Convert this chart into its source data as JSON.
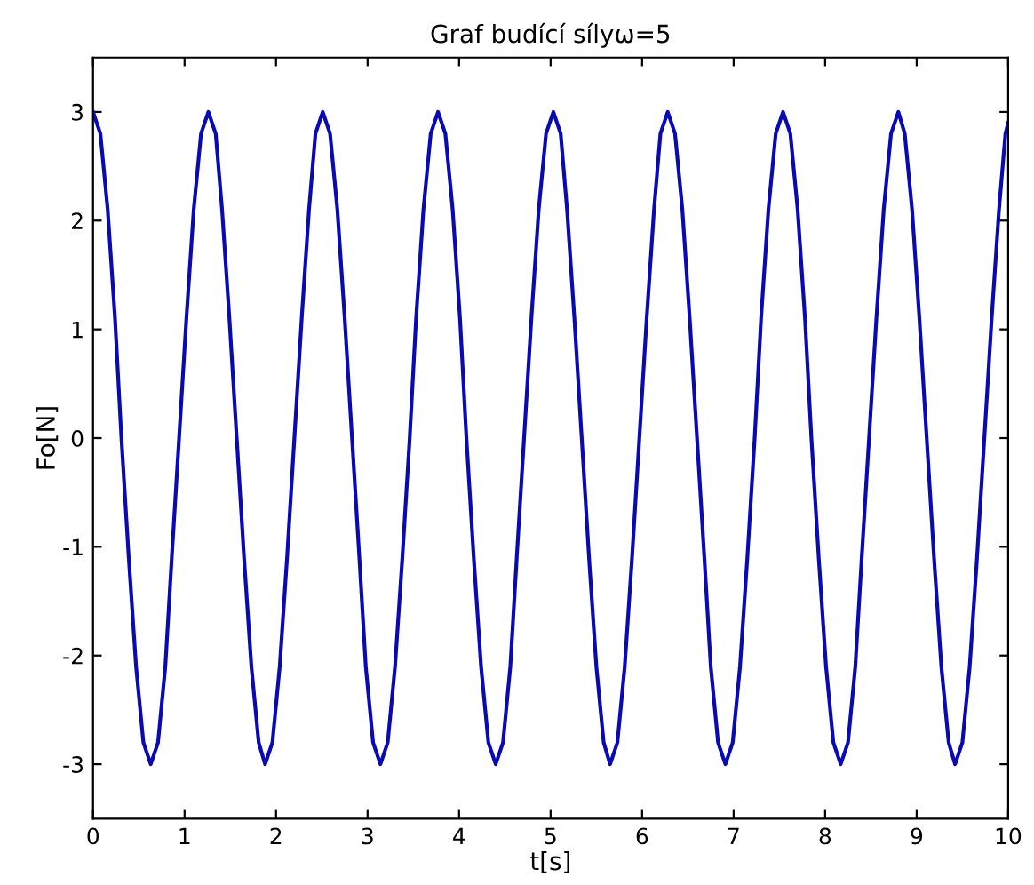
{
  "chart_data": {
    "type": "line",
    "title": "Graf budící sílyω=5",
    "xlabel": "t[s]",
    "ylabel": "Fo[N]",
    "xlim": [
      0,
      10
    ],
    "ylim": [
      -3.5,
      3.5
    ],
    "xticks": [
      0,
      1,
      2,
      3,
      4,
      5,
      6,
      7,
      8,
      9,
      10
    ],
    "yticks": [
      -3,
      -2,
      -1,
      0,
      1,
      2,
      3
    ],
    "grid": false,
    "line_style": "solid",
    "series": [
      {
        "color": "#0a0ab4",
        "x": [
          0,
          0.08,
          0.16,
          0.24,
          0.31,
          0.39,
          0.47,
          0.55,
          0.63,
          0.71,
          0.79,
          0.86,
          0.94,
          1.02,
          1.1,
          1.18,
          1.26,
          1.34,
          1.41,
          1.49,
          1.57,
          1.65,
          1.73,
          1.81,
          1.88,
          1.96,
          2.04,
          2.12,
          2.2,
          2.28,
          2.36,
          2.43,
          2.51,
          2.59,
          2.67,
          2.75,
          2.83,
          2.91,
          2.98,
          3.06,
          3.14,
          3.22,
          3.3,
          3.38,
          3.46,
          3.53,
          3.61,
          3.69,
          3.77,
          3.85,
          3.93,
          4.01,
          4.08,
          4.16,
          4.24,
          4.32,
          4.4,
          4.48,
          4.56,
          4.63,
          4.71,
          4.79,
          4.87,
          4.95,
          5.03,
          5.11,
          5.18,
          5.26,
          5.34,
          5.42,
          5.5,
          5.58,
          5.65,
          5.73,
          5.81,
          5.89,
          5.97,
          6.05,
          6.13,
          6.2,
          6.28,
          6.36,
          6.44,
          6.52,
          6.6,
          6.68,
          6.75,
          6.83,
          6.91,
          6.99,
          7.07,
          7.15,
          7.23,
          7.3,
          7.38,
          7.46,
          7.54,
          7.62,
          7.7,
          7.78,
          7.85,
          7.93,
          8.01,
          8.09,
          8.17,
          8.25,
          8.33,
          8.4,
          8.48,
          8.56,
          8.64,
          8.72,
          8.8,
          8.87,
          8.95,
          9.03,
          9.11,
          9.19,
          9.27,
          9.35,
          9.42,
          9.5,
          9.58,
          9.66,
          9.74,
          9.82,
          9.9,
          9.97,
          10
        ],
        "values": [
          3,
          2.8,
          2.1,
          1.1,
          0,
          -1.1,
          -2.1,
          -2.8,
          -3,
          -2.8,
          -2.1,
          -1.1,
          0,
          1.1,
          2.1,
          2.8,
          3,
          2.8,
          2.1,
          1.1,
          0,
          -1.1,
          -2.1,
          -2.8,
          -3,
          -2.8,
          -2.1,
          -1.1,
          0,
          1.1,
          2.1,
          2.8,
          3,
          2.8,
          2.1,
          1.1,
          0,
          -1.1,
          -2.1,
          -2.8,
          -3,
          -2.8,
          -2.1,
          -1.1,
          0,
          1.1,
          2.1,
          2.8,
          3,
          2.8,
          2.1,
          1.1,
          0,
          -1.1,
          -2.1,
          -2.8,
          -3,
          -2.8,
          -2.1,
          -1.1,
          0,
          1.1,
          2.1,
          2.8,
          3,
          2.8,
          2.1,
          1.1,
          0,
          -1.1,
          -2.1,
          -2.8,
          -3,
          -2.8,
          -2.1,
          -1.1,
          0,
          1.1,
          2.1,
          2.8,
          3,
          2.8,
          2.1,
          1.1,
          0,
          -1.1,
          -2.1,
          -2.8,
          -3,
          -2.8,
          -2.1,
          -1.1,
          0,
          1.1,
          2.1,
          2.8,
          3,
          2.8,
          2.1,
          1.1,
          0,
          -1.1,
          -2.1,
          -2.8,
          -3,
          -2.8,
          -2.1,
          -1.1,
          0,
          1.1,
          2.1,
          2.8,
          3,
          2.8,
          2.1,
          1.1,
          0,
          -1.1,
          -2.1,
          -2.8,
          -3,
          -2.8,
          -2.1,
          -1.1,
          0,
          1.1,
          2.1,
          2.8,
          2.9
        ]
      }
    ]
  }
}
